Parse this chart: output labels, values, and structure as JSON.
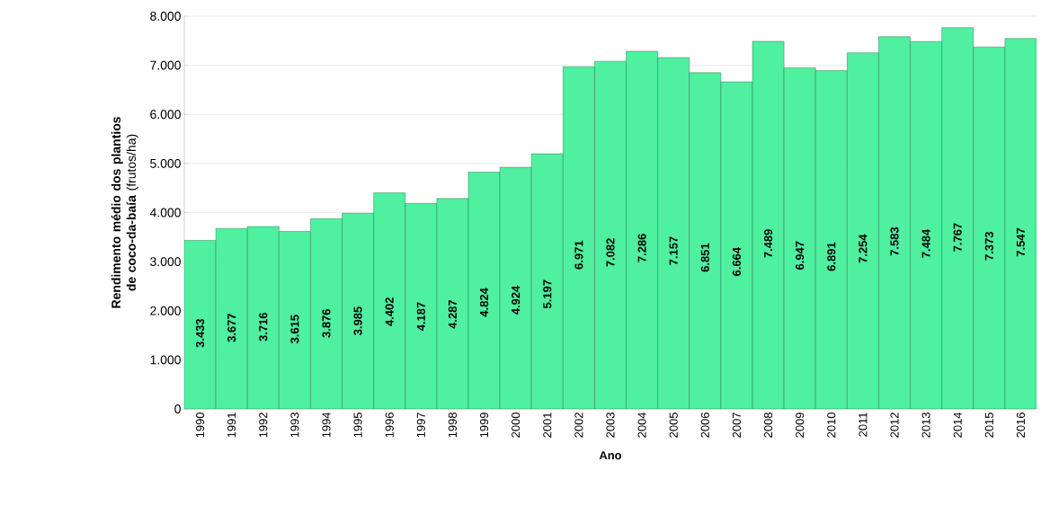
{
  "chart_data": {
    "type": "bar",
    "xlabel": "Ano",
    "ylabel": "**Rendimento médio dos plantios de coco-da-baía** (frutos/ha)",
    "categories": [
      "1990",
      "1991",
      "1992",
      "1993",
      "1994",
      "1995",
      "1996",
      "1997",
      "1998",
      "1999",
      "2000",
      "2001",
      "2002",
      "2003",
      "2004",
      "2005",
      "2006",
      "2007",
      "2008",
      "2009",
      "2010",
      "2011",
      "2012",
      "2013",
      "2014",
      "2015",
      "2016"
    ],
    "values": [
      3433,
      3677,
      3716,
      3615,
      3876,
      3985,
      4402,
      4187,
      4287,
      4824,
      4924,
      5197,
      6971,
      7082,
      7286,
      7157,
      6851,
      6664,
      7489,
      6947,
      6891,
      7254,
      7583,
      7484,
      7767,
      7373,
      7547
    ],
    "value_labels": [
      "3.433",
      "3.677",
      "3.716",
      "3.615",
      "3.876",
      "3.985",
      "4.402",
      "4.187",
      "4.287",
      "4.824",
      "4.924",
      "5.197",
      "6.971",
      "7.082",
      "7.286",
      "7.157",
      "6.851",
      "6.664",
      "7.489",
      "6.947",
      "6.891",
      "7.254",
      "7.583",
      "7.484",
      "7.767",
      "7.373",
      "7.547"
    ],
    "color": "#4ff0a0",
    "ylim": [
      0,
      8000
    ],
    "yticks": [
      {
        "value": 0,
        "label": "0"
      },
      {
        "value": 1000,
        "label": "1.000"
      },
      {
        "value": 2000,
        "label": "2.000"
      },
      {
        "value": 3000,
        "label": "3.000"
      },
      {
        "value": 4000,
        "label": "4.000"
      },
      {
        "value": 5000,
        "label": "5.000"
      },
      {
        "value": 6000,
        "label": "6.000"
      },
      {
        "value": 7000,
        "label": "7.000"
      },
      {
        "value": 8000,
        "label": "8.000"
      }
    ],
    "grid": "y"
  }
}
